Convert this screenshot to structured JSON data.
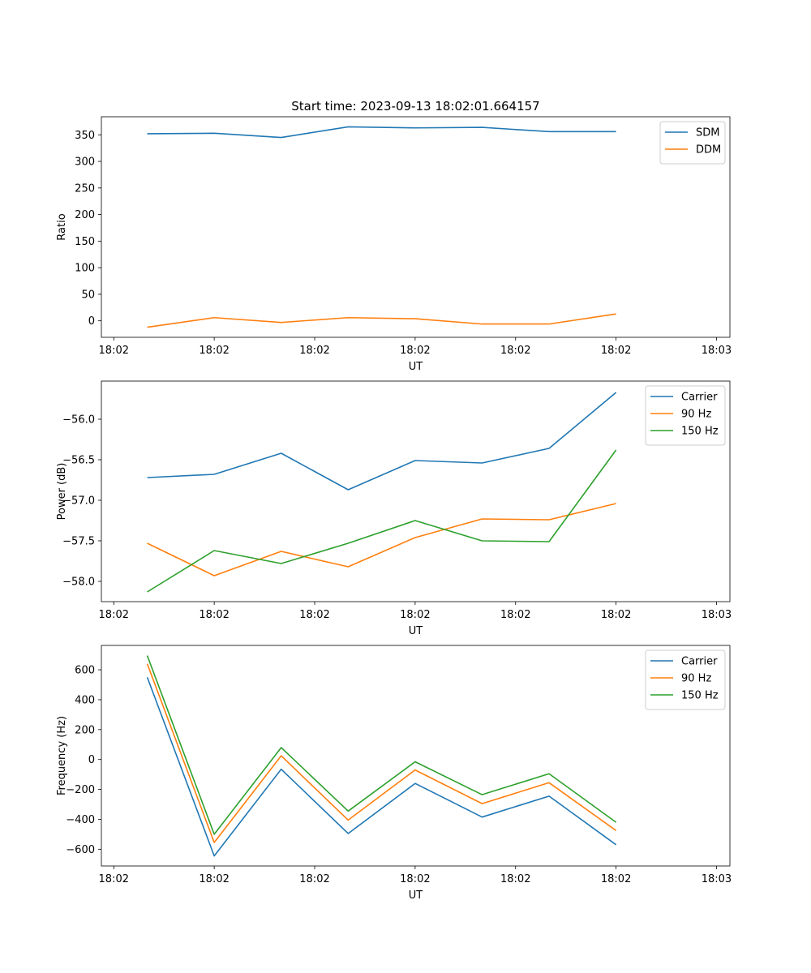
{
  "figure_title": "Start time: 2023-09-13 18:02:01.664157",
  "colors": {
    "blue": "#1f77b4",
    "orange": "#ff7f0e",
    "green": "#2ca02c"
  },
  "chart_data": [
    {
      "type": "line",
      "ylabel": "Ratio",
      "xlabel": "UT",
      "x": [
        1,
        2,
        3,
        4,
        5,
        6,
        7,
        8
      ],
      "xlim": [
        0.315,
        9.7
      ],
      "xticks": [
        0.5,
        2.0,
        3.5,
        5.0,
        6.5,
        8.0,
        9.5
      ],
      "xtick_labels": [
        "18:02",
        "18:02",
        "18:02",
        "18:02",
        "18:02",
        "18:02",
        "18:03"
      ],
      "ylim": [
        -31,
        384
      ],
      "yticks": [
        0,
        50,
        100,
        150,
        200,
        250,
        300,
        350
      ],
      "legend_position": "top-right",
      "series": [
        {
          "name": "SDM",
          "color": "blue",
          "values": [
            352,
            353,
            345,
            365,
            363,
            364,
            356,
            356
          ]
        },
        {
          "name": "DDM",
          "color": "orange",
          "values": [
            -12,
            6,
            -3,
            6,
            4,
            -6,
            -6,
            13
          ]
        }
      ]
    },
    {
      "type": "line",
      "ylabel": "Power (dB)",
      "xlabel": "UT",
      "x": [
        1,
        2,
        3,
        4,
        5,
        6,
        7,
        8
      ],
      "xlim": [
        0.315,
        9.7
      ],
      "xticks": [
        0.5,
        2.0,
        3.5,
        5.0,
        6.5,
        8.0,
        9.5
      ],
      "xtick_labels": [
        "18:02",
        "18:02",
        "18:02",
        "18:02",
        "18:02",
        "18:02",
        "18:03"
      ],
      "ylim": [
        -58.25,
        -55.53
      ],
      "yticks": [
        -58.0,
        -57.5,
        -57.0,
        -56.5,
        -56.0
      ],
      "ytick_labels": [
        "−58.0",
        "−57.5",
        "−57.0",
        "−56.5",
        "−56.0"
      ],
      "legend_position": "top-right",
      "series": [
        {
          "name": "Carrier",
          "color": "blue",
          "values": [
            -56.72,
            -56.68,
            -56.42,
            -56.87,
            -56.51,
            -56.54,
            -56.36,
            -55.67
          ]
        },
        {
          "name": "90 Hz",
          "color": "orange",
          "values": [
            -57.53,
            -57.93,
            -57.63,
            -57.82,
            -57.46,
            -57.23,
            -57.24,
            -57.04
          ]
        },
        {
          "name": "150 Hz",
          "color": "green",
          "values": [
            -58.13,
            -57.62,
            -57.78,
            -57.53,
            -57.25,
            -57.5,
            -57.51,
            -56.38
          ]
        }
      ]
    },
    {
      "type": "line",
      "ylabel": "Frequency (Hz)",
      "xlabel": "UT",
      "x": [
        1,
        2,
        3,
        4,
        5,
        6,
        7,
        8
      ],
      "xlim": [
        0.315,
        9.7
      ],
      "xticks": [
        0.5,
        2.0,
        3.5,
        5.0,
        6.5,
        8.0,
        9.5
      ],
      "xtick_labels": [
        "18:02",
        "18:02",
        "18:02",
        "18:02",
        "18:02",
        "18:02",
        "18:03"
      ],
      "ylim": [
        -712,
        763
      ],
      "yticks": [
        -600,
        -400,
        -200,
        0,
        200,
        400,
        600
      ],
      "ytick_labels": [
        "−600",
        "−400",
        "−200",
        "0",
        "200",
        "400",
        "600"
      ],
      "legend_position": "top-right",
      "series": [
        {
          "name": "Carrier",
          "color": "blue",
          "values": [
            550,
            -645,
            -65,
            -495,
            -160,
            -385,
            -245,
            -570
          ]
        },
        {
          "name": "90 Hz",
          "color": "orange",
          "values": [
            640,
            -555,
            25,
            -405,
            -70,
            -295,
            -155,
            -475
          ]
        },
        {
          "name": "150 Hz",
          "color": "green",
          "values": [
            695,
            -500,
            80,
            -345,
            -15,
            -235,
            -95,
            -420
          ]
        }
      ]
    }
  ]
}
